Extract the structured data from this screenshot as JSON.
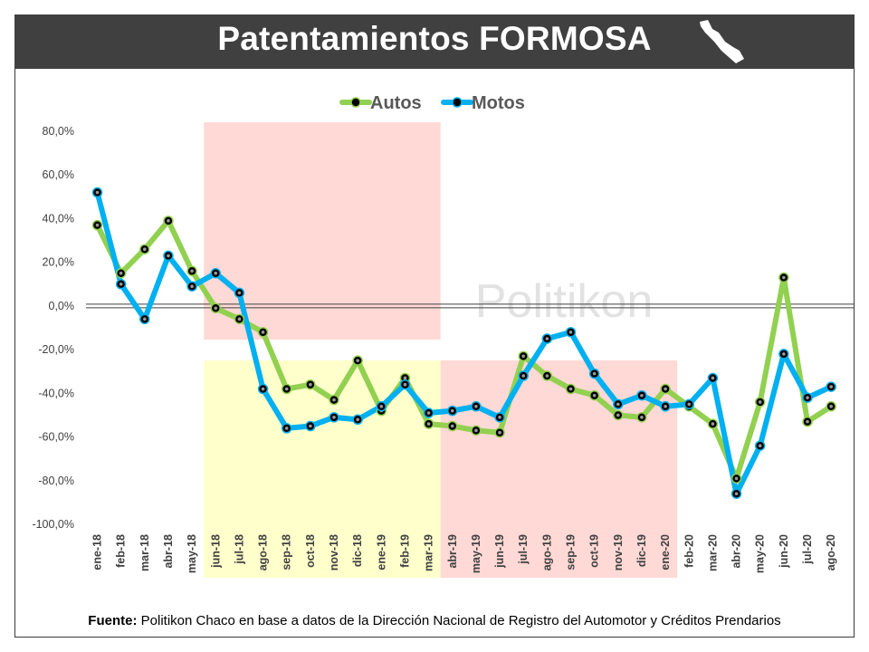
{
  "title": "Patentamientos FORMOSA",
  "watermark": "Politikon",
  "footer": {
    "label": "Fuente:",
    "text": " Politikon Chaco en base a datos de la Dirección Nacional de Registro del Automotor  y Créditos Prendarios"
  },
  "colors": {
    "autos": "#92d050",
    "motos": "#00b0f0",
    "shade_red": "#ffd9d5",
    "shade_yellow": "#ffffcc"
  },
  "chart_data": {
    "type": "line",
    "title": "Patentamientos FORMOSA",
    "categories": [
      "ene-18",
      "feb-18",
      "mar-18",
      "abr-18",
      "may-18",
      "jun-18",
      "jul-18",
      "ago-18",
      "sep-18",
      "oct-18",
      "nov-18",
      "dic-18",
      "ene-19",
      "feb-19",
      "mar-19",
      "abr-19",
      "may-19",
      "jun-19",
      "jul-19",
      "ago-19",
      "sep-19",
      "oct-19",
      "nov-19",
      "dic-19",
      "ene-20",
      "feb-20",
      "mar-20",
      "abr-20",
      "may-20",
      "jun-20",
      "jul-20",
      "ago-20"
    ],
    "series": [
      {
        "name": "Autos",
        "values": [
          37,
          15,
          26,
          39,
          16,
          -1,
          -6,
          -12,
          -38,
          -36,
          -43,
          -25,
          -48,
          -33,
          -54,
          -55,
          -57,
          -58,
          -23,
          -32,
          -38,
          -41,
          -50,
          -51,
          -38,
          -46,
          -54,
          -79,
          -44,
          13,
          -53,
          -46
        ]
      },
      {
        "name": "Motos",
        "values": [
          52,
          10,
          -6,
          23,
          9,
          15,
          6,
          -38,
          -56,
          -55,
          -51,
          -52,
          -46,
          -36,
          -49,
          -48,
          -46,
          -51,
          -32,
          -15,
          -12,
          -31,
          -45,
          -41,
          -46,
          -45,
          -33,
          -86,
          -64,
          -22,
          -42,
          -37
        ]
      }
    ],
    "y_ticks": [
      "80,0%",
      "60,0%",
      "40,0%",
      "20,0%",
      "0,0%",
      "-20,0%",
      "-40,0%",
      "-60,0%",
      "-80,0%",
      "-100,0%"
    ],
    "ylim": [
      -100,
      80
    ],
    "legend_position": "top-center",
    "shaded_periods": [
      {
        "from": "jun-18",
        "to": "mar-19",
        "band": "upper",
        "color": "red"
      },
      {
        "from": "jun-18",
        "to": "mar-19",
        "band": "lower",
        "color": "yellow"
      },
      {
        "from": "abr-19",
        "to": "ene-20",
        "band": "lower",
        "color": "red"
      }
    ]
  }
}
